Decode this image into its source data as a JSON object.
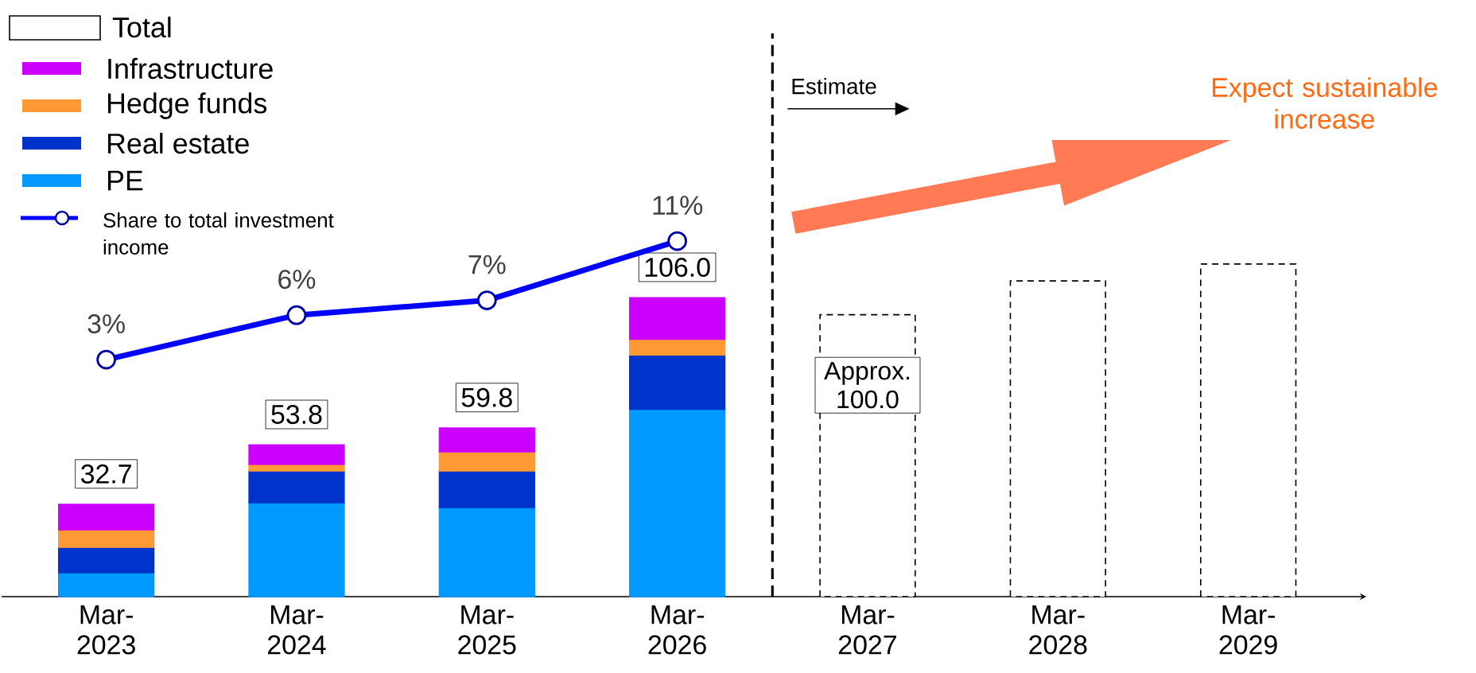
{
  "chart_data": {
    "type": "bar",
    "stacked": true,
    "categories": [
      "Mar-2023",
      "Mar-2024",
      "Mar-2025",
      "Mar-2026",
      "Mar-2027",
      "Mar-2028",
      "Mar-2029"
    ],
    "series": [
      {
        "name": "PE",
        "color": "#0099ff",
        "values": [
          8.5,
          33.3,
          31.6,
          66.5,
          null,
          null,
          null
        ]
      },
      {
        "name": "Real estate",
        "color": "#0033cc",
        "values": [
          9.0,
          11.3,
          13.0,
          19.2,
          null,
          null,
          null
        ]
      },
      {
        "name": "Hedge funds",
        "color": "#ff9933",
        "values": [
          6.2,
          2.3,
          6.8,
          5.6,
          null,
          null,
          null
        ]
      },
      {
        "name": "Infrastructure",
        "color": "#cc00ff",
        "values": [
          9.0,
          6.9,
          8.4,
          14.7,
          null,
          null,
          null
        ]
      },
      {
        "name": "Total",
        "color": "#ffffff",
        "line_style": "dashed",
        "values": [
          null,
          null,
          null,
          null,
          100,
          112,
          118
        ],
        "value_labels": [
          null,
          null,
          null,
          null,
          "Approx. 100.0",
          null,
          null
        ]
      },
      {
        "name": "Share to total investment income",
        "type": "line",
        "axis": "y2",
        "color": "#0000ff",
        "marker": "circle",
        "values": [
          3,
          6,
          7,
          11,
          null,
          null,
          null
        ],
        "value_labels": [
          "3%",
          "6%",
          "7%",
          "11%",
          null,
          null,
          null
        ]
      }
    ],
    "totals": [
      "32.7",
      "53.8",
      "59.8",
      "106.0",
      null,
      null,
      null
    ],
    "ylim": [
      0,
      206
    ],
    "tick_labels": "x",
    "legend": "top left",
    "grid": false,
    "annotations": [
      "Estimate",
      "Expect sustainable increase"
    ]
  }
}
